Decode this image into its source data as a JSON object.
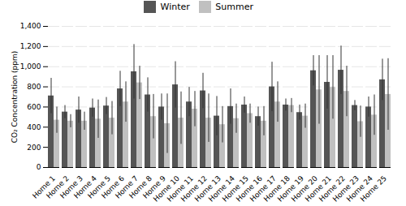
{
  "chart_data": {
    "type": "bar",
    "categories": [
      "Home 1",
      "Home 2",
      "Home 3",
      "Home 4",
      "Home 5",
      "Home 6",
      "Home 7",
      "Home 8",
      "Home 9",
      "Home 10",
      "Home 11",
      "Home 12",
      "Home 13",
      "Home 14",
      "Home 15",
      "Home 16",
      "Home 17",
      "Home 18",
      "Home 19",
      "Home 20",
      "Home 21",
      "Home 22",
      "Home 23",
      "Home 24",
      "Home 25"
    ],
    "series": [
      {
        "name": "Winter",
        "color": "#555555",
        "values": [
          710,
          550,
          570,
          590,
          610,
          780,
          950,
          720,
          600,
          820,
          650,
          760,
          510,
          605,
          620,
          505,
          800,
          620,
          545,
          960,
          845,
          965,
          615,
          600,
          870
        ],
        "error_lower": [
          175,
          65,
          130,
          90,
          85,
          175,
          270,
          170,
          130,
          230,
          145,
          175,
          195,
          175,
          80,
          95,
          245,
          60,
          75,
          150,
          265,
          240,
          50,
          100,
          205
        ],
        "error_upper": [
          175,
          65,
          130,
          90,
          85,
          175,
          270,
          170,
          130,
          230,
          145,
          175,
          195,
          175,
          80,
          95,
          245,
          60,
          75,
          150,
          265,
          240,
          50,
          100,
          205
        ]
      },
      {
        "name": "Summer",
        "color": "#c0c0c0",
        "values": [
          470,
          460,
          460,
          480,
          490,
          650,
          840,
          505,
          435,
          490,
          580,
          490,
          425,
          485,
          535,
          460,
          650,
          615,
          510,
          770,
          795,
          755,
          455,
          520,
          725
        ],
        "error_lower": [
          130,
          65,
          90,
          190,
          165,
          200,
          165,
          220,
          295,
          260,
          175,
          240,
          180,
          145,
          95,
          145,
          200,
          70,
          120,
          340,
          315,
          250,
          155,
          200,
          355
        ],
        "error_upper": [
          130,
          65,
          90,
          190,
          165,
          200,
          165,
          220,
          295,
          260,
          175,
          240,
          180,
          145,
          95,
          145,
          200,
          70,
          120,
          340,
          315,
          250,
          155,
          200,
          355
        ]
      }
    ],
    "ylabel": "CO₂ Concentration (ppm)",
    "ylim": [
      0,
      1400
    ],
    "yticks": [
      0,
      200,
      400,
      600,
      800,
      1000,
      1200,
      1400
    ],
    "grid": true,
    "legend": "top"
  }
}
